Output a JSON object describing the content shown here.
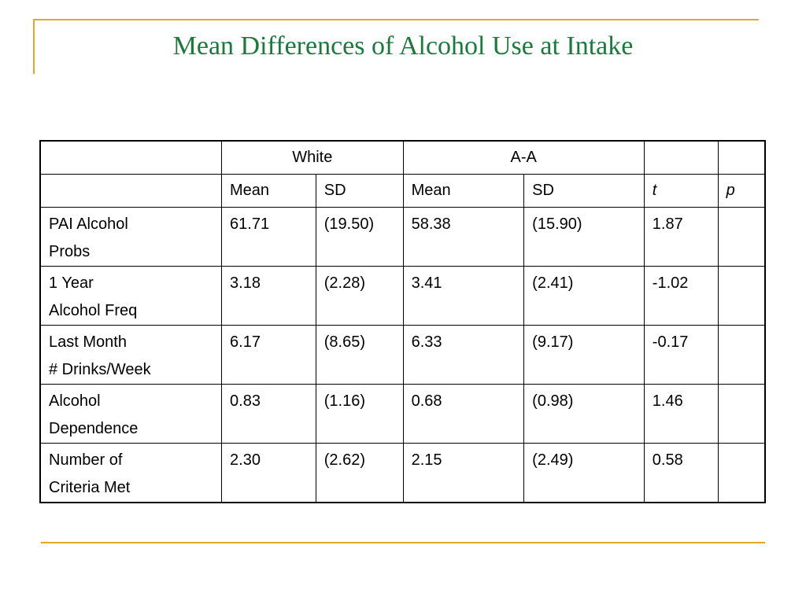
{
  "slide": {
    "title": "Mean Differences of  Alcohol Use at Intake",
    "accent_color": "#e0a828",
    "title_color": "#1a7a3c"
  },
  "table": {
    "group_headers": {
      "white": "White",
      "aa": "A-A"
    },
    "sub_headers": [
      "Mean",
      "SD",
      "Mean",
      "SD",
      "t",
      "p"
    ],
    "rows": [
      {
        "label_line1": "PAI Alcohol",
        "label_line2": "Probs",
        "cells": [
          "61.71",
          "(19.50)",
          "58.38",
          "(15.90)",
          "1.87",
          ""
        ]
      },
      {
        "label_line1": "1 Year",
        "label_line2": "Alcohol Freq",
        "cells": [
          "3.18",
          "(2.28)",
          "3.41",
          "(2.41)",
          "-1.02",
          ""
        ]
      },
      {
        "label_line1": "Last Month",
        "label_line2": "# Drinks/Week",
        "cells": [
          "6.17",
          "(8.65)",
          "6.33",
          "(9.17)",
          "-0.17",
          ""
        ]
      },
      {
        "label_line1": "Alcohol",
        "label_line2": "Dependence",
        "cells": [
          "0.83",
          "(1.16)",
          "0.68",
          "(0.98)",
          "1.46",
          ""
        ]
      },
      {
        "label_line1": "Number of",
        "label_line2": "Criteria Met",
        "cells": [
          "2.30",
          "(2.62)",
          "2.15",
          "(2.49)",
          "0.58",
          ""
        ]
      }
    ]
  }
}
